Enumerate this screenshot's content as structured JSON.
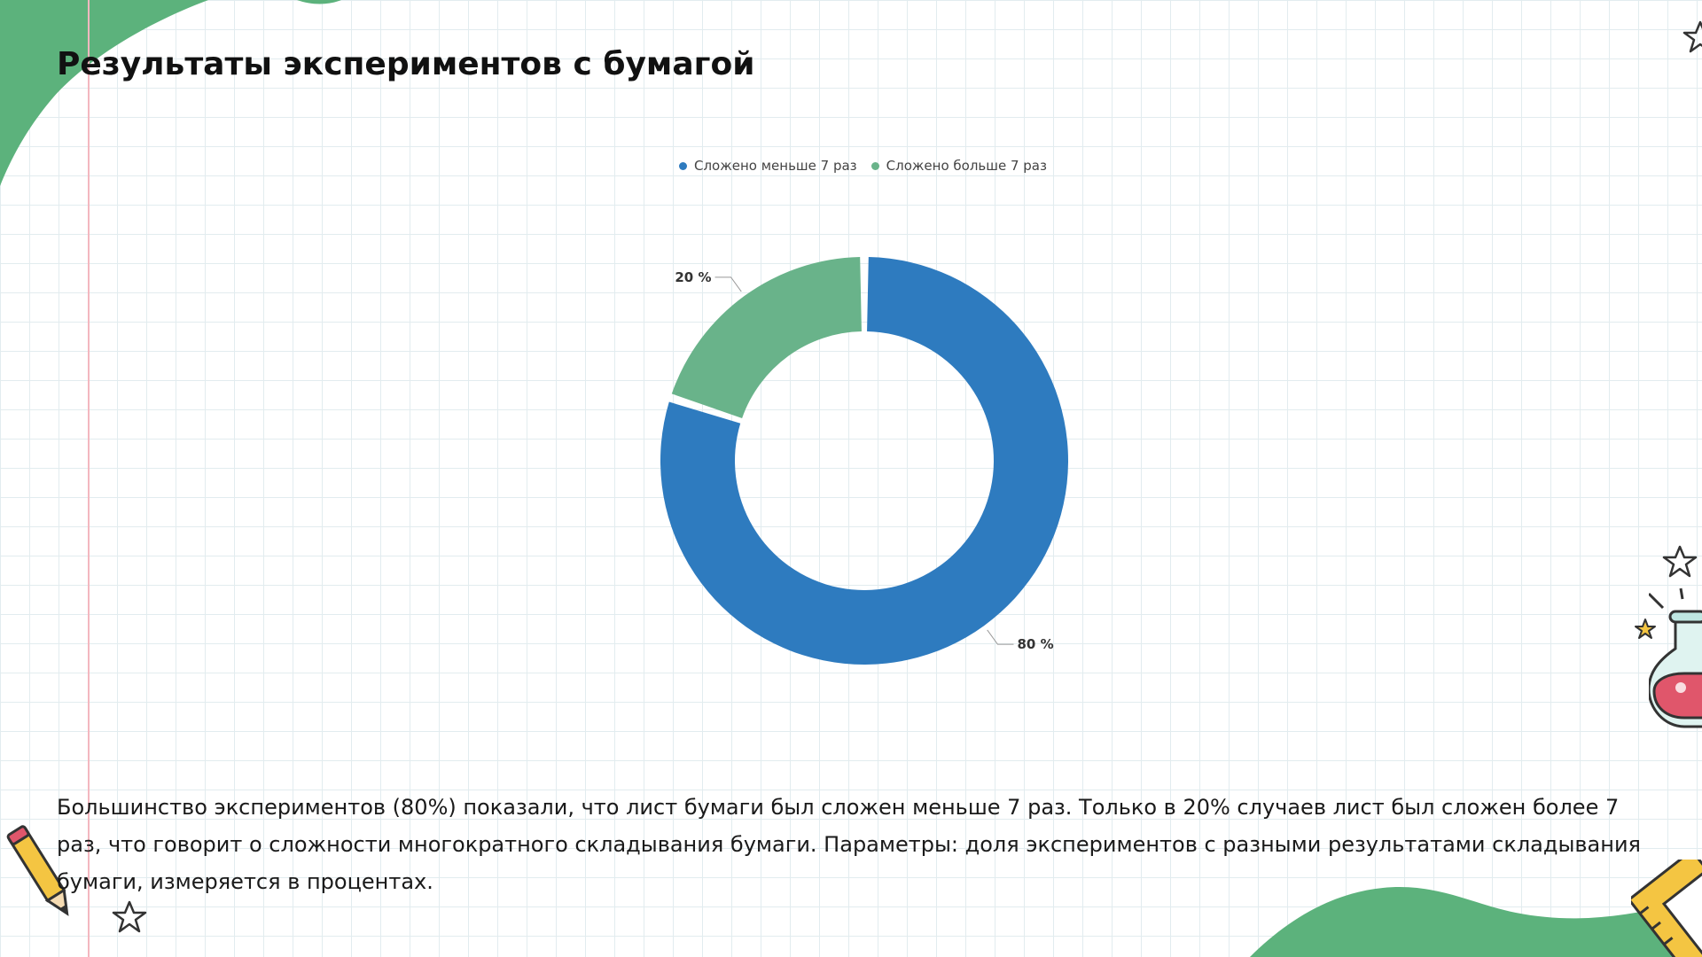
{
  "slide": {
    "title": "Результаты экспериментов с бумагой",
    "description": "Большинство экспериментов (80%) показали, что лист бумаги был сложен меньше 7 раз. Только в 20% случаев лист был сложен более 7 раз, что говорит о сложности многократного складывания бумаги. Параметры: доля экспериментов с разными результатами складывания бумаги, измеряется в процентах."
  },
  "colors": {
    "series_less": "#2e7bbf",
    "series_more": "#69b38a",
    "decor_green": "#5cb27c",
    "grid": "#e2ecef"
  },
  "icons": [
    "pencil-icon",
    "star-icon",
    "flask-icon",
    "ruler-icon"
  ],
  "chart_data": {
    "type": "pie",
    "style": "donut",
    "title": "",
    "legend_position": "top-center",
    "series": [
      {
        "name": "Сложено меньше 7 раз",
        "value": 80,
        "label": "80 %",
        "color": "#2e7bbf"
      },
      {
        "name": "Сложено больше 7 раз",
        "value": 20,
        "label": "20 %",
        "color": "#69b38a"
      }
    ]
  }
}
